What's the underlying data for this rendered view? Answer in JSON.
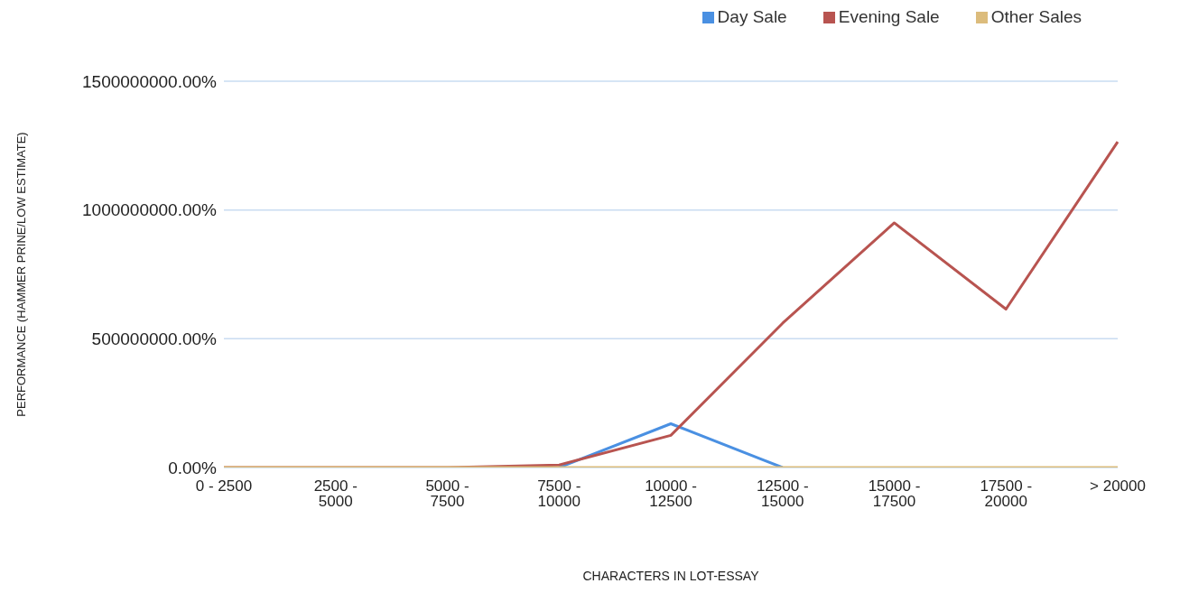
{
  "chart_data": {
    "type": "line",
    "xlabel": "CHARACTERS IN LOT-ESSAY",
    "ylabel": "PERFORMANCE (HAMMER PRINE/LOW ESTIMATE)",
    "categories": [
      "0 - 2500",
      "2500 - 5000",
      "5000 - 7500",
      "7500 - 10000",
      "10000 - 12500",
      "12500 - 15000",
      "15000 - 17500",
      "17500 - 20000",
      "> 20000"
    ],
    "series": [
      {
        "name": "Day Sale",
        "color": "#4a90e2",
        "values": [
          null,
          null,
          null,
          0,
          170000000,
          0,
          null,
          null,
          null
        ]
      },
      {
        "name": "Evening Sale",
        "color": "#b85450",
        "values": [
          0,
          0,
          0,
          10000000,
          125000000,
          560000000,
          950000000,
          615000000,
          1265000000
        ]
      },
      {
        "name": "Other Sales",
        "color": "#dcbc7c",
        "values": [
          0,
          0,
          0,
          0,
          0,
          0,
          0,
          0,
          0
        ]
      }
    ],
    "ylim": [
      0,
      1500000000
    ],
    "yticks": [
      {
        "value": 0,
        "label": "0.00%"
      },
      {
        "value": 500000000,
        "label": "500000000.00%"
      },
      {
        "value": 1000000000,
        "label": "1000000000.00%"
      },
      {
        "value": 1500000000,
        "label": "1500000000.00%"
      }
    ],
    "grid": "y",
    "legend": "top right",
    "marker": "none",
    "line_style": "solid"
  }
}
